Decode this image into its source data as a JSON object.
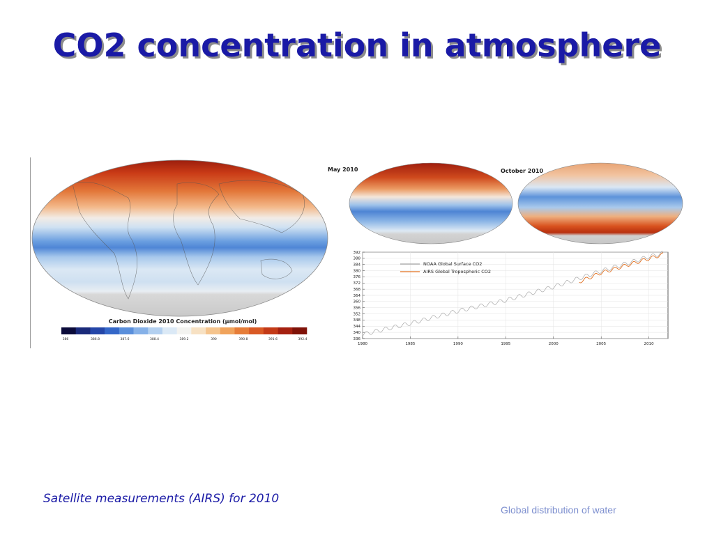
{
  "slide": {
    "title": "CO2 concentration in atmosphere",
    "caption": "Satellite measurements (AIRS) for 2010",
    "footer": "Global distribution of water"
  },
  "map_main": {
    "colorbar_title": "Carbon Dioxide 2010 Concentration (μmol/mol)",
    "colorbar_ticks": [
      "386",
      "386.8",
      "387.6",
      "388.4",
      "389.2",
      "390",
      "390.8",
      "391.6",
      "392.4"
    ],
    "colorbar_colors": [
      "#0b0b3a",
      "#1a2a7a",
      "#2446a8",
      "#3467c8",
      "#5a8fdb",
      "#86b1e8",
      "#b3d0f0",
      "#dbe9f6",
      "#f3f3f0",
      "#f7e1c3",
      "#f5c48d",
      "#f0a35c",
      "#e67d38",
      "#d95a25",
      "#c33a17",
      "#a52010",
      "#7f1208"
    ]
  },
  "map_may": {
    "label": "May 2010"
  },
  "map_october": {
    "label": "October 2010"
  },
  "chart_data": {
    "type": "line",
    "x_range": [
      1980,
      2012
    ],
    "ylim": [
      336,
      392
    ],
    "x_ticks": [
      1980,
      1985,
      1990,
      1995,
      2000,
      2005,
      2010
    ],
    "y_ticks": [
      336,
      340,
      344,
      348,
      352,
      356,
      360,
      364,
      368,
      372,
      376,
      380,
      384,
      388,
      392
    ],
    "legend_position": "top-left",
    "series": [
      {
        "name": "NOAA Global Surface CO2",
        "color": "#a8a8a8",
        "trend": {
          "x": [
            1980,
            1985,
            1990,
            1995,
            2000,
            2005,
            2010,
            2011.5
          ],
          "y": [
            338.7,
            345.8,
            353.9,
            360.8,
            369.5,
            379.8,
            389.0,
            391.5
          ]
        },
        "seasonal_amplitude": 1.3
      },
      {
        "name": "AIRS Global Tropospheric CO2",
        "color": "#e06f1f",
        "trend": {
          "x": [
            2002.7,
            2005,
            2010,
            2011.5
          ],
          "y": [
            372.8,
            378.6,
            387.8,
            390.6
          ]
        },
        "seasonal_amplitude": 1.1
      }
    ]
  }
}
